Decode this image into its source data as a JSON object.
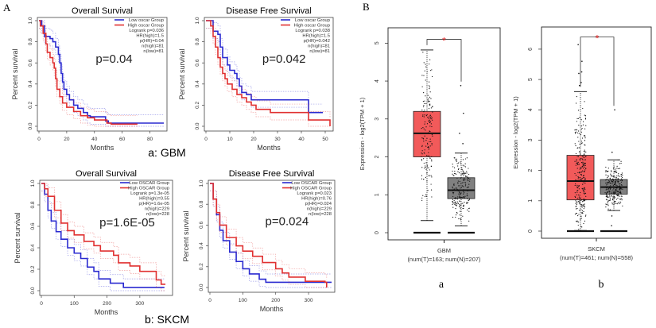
{
  "panel_labels": {
    "A": "A",
    "B": "B",
    "gbm": "a: GBM",
    "skcm": "b:  SKCM",
    "box_a": "a",
    "box_b": "b"
  },
  "colors": {
    "low": "#2a2ad0",
    "high": "#e03030",
    "tumor_box": "#f25a5a",
    "normal_box": "#808080",
    "star": "#e02020"
  },
  "chart_data": [
    {
      "type": "line",
      "title": "Overall Survival",
      "xlabel": "Months",
      "ylabel": "Percent survival",
      "xlim": [
        0,
        90
      ],
      "xticks": [
        0,
        20,
        40,
        60,
        80
      ],
      "ylim": [
        0,
        1
      ],
      "yticks": [
        "0.0",
        "0.2",
        "0.4",
        "0.6",
        "0.8",
        "1.0"
      ],
      "annotation": "p=0.04",
      "legend_placement": "top-right",
      "legend": [
        "Low oscar Group",
        "High oscar Group",
        "Logrank p=0.036",
        "HR(high)=1.5",
        "p(HR)=0.04",
        "n(high)=81",
        "n(low)=81"
      ],
      "series": [
        {
          "name": "Low oscar Group",
          "color": "low",
          "points": [
            [
              0,
              1
            ],
            [
              2,
              0.95
            ],
            [
              4,
              0.85
            ],
            [
              8,
              0.83
            ],
            [
              10,
              0.8
            ],
            [
              12,
              0.75
            ],
            [
              14,
              0.68
            ],
            [
              15,
              0.6
            ],
            [
              16,
              0.5
            ],
            [
              17,
              0.42
            ],
            [
              18,
              0.35
            ],
            [
              20,
              0.3
            ],
            [
              22,
              0.25
            ],
            [
              25,
              0.2
            ],
            [
              28,
              0.17
            ],
            [
              32,
              0.13
            ],
            [
              35,
              0.1
            ],
            [
              37,
              0.09
            ],
            [
              48,
              0.05
            ],
            [
              50,
              0.03
            ],
            [
              90,
              0.03
            ]
          ]
        },
        {
          "name": "High oscar Group",
          "color": "high",
          "points": [
            [
              0,
              1
            ],
            [
              1,
              0.95
            ],
            [
              3,
              0.88
            ],
            [
              5,
              0.78
            ],
            [
              6,
              0.7
            ],
            [
              8,
              0.65
            ],
            [
              10,
              0.6
            ],
            [
              11,
              0.55
            ],
            [
              12,
              0.45
            ],
            [
              13,
              0.35
            ],
            [
              15,
              0.28
            ],
            [
              17,
              0.22
            ],
            [
              20,
              0.18
            ],
            [
              25,
              0.14
            ],
            [
              30,
              0.1
            ],
            [
              35,
              0.08
            ],
            [
              40,
              0.06
            ],
            [
              49,
              0.03
            ],
            [
              52,
              0.02
            ],
            [
              71,
              0.02
            ]
          ]
        }
      ]
    },
    {
      "type": "line",
      "title": "Disease Free Survival",
      "xlabel": "Months",
      "ylabel": "Percent survival",
      "xlim": [
        0,
        52
      ],
      "xticks": [
        0,
        10,
        20,
        30,
        40,
        50
      ],
      "ylim": [
        0,
        1
      ],
      "yticks": [
        "0.0",
        "0.2",
        "0.4",
        "0.6",
        "0.8",
        "1.0"
      ],
      "annotation": "p=0.042",
      "legend_placement": "top-right",
      "legend": [
        "Low oscar Group",
        "High oscar Group",
        "Logrank p=0.038",
        "HR(high)=1.5",
        "p(HR)=0.042",
        "n(high)=81",
        "n(low)=81"
      ],
      "series": [
        {
          "name": "Low oscar Group",
          "color": "low",
          "points": [
            [
              0,
              1
            ],
            [
              3,
              0.9
            ],
            [
              5,
              0.87
            ],
            [
              6,
              0.75
            ],
            [
              7,
              0.65
            ],
            [
              9,
              0.58
            ],
            [
              10,
              0.53
            ],
            [
              12,
              0.5
            ],
            [
              13,
              0.45
            ],
            [
              14,
              0.38
            ],
            [
              15,
              0.32
            ],
            [
              17,
              0.3
            ],
            [
              19,
              0.25
            ],
            [
              43,
              0.13
            ],
            [
              49,
              0.13
            ]
          ]
        },
        {
          "name": "High oscar Group",
          "color": "high",
          "points": [
            [
              0,
              1
            ],
            [
              2,
              0.95
            ],
            [
              3,
              0.85
            ],
            [
              4,
              0.75
            ],
            [
              5,
              0.65
            ],
            [
              6,
              0.56
            ],
            [
              7,
              0.5
            ],
            [
              8,
              0.45
            ],
            [
              9,
              0.4
            ],
            [
              11,
              0.35
            ],
            [
              13,
              0.3
            ],
            [
              15,
              0.27
            ],
            [
              17,
              0.23
            ],
            [
              19,
              0.2
            ],
            [
              21,
              0.16
            ],
            [
              27,
              0.13
            ],
            [
              43,
              0.06
            ],
            [
              52,
              0.0
            ]
          ]
        }
      ]
    },
    {
      "type": "line",
      "title": "Overall Survival",
      "xlabel": "Months",
      "ylabel": "Percent survival",
      "xlim": [
        0,
        390
      ],
      "xticks": [
        0,
        100,
        200,
        300
      ],
      "ylim": [
        0,
        1
      ],
      "yticks": [
        "0.0",
        "0.2",
        "0.4",
        "0.6",
        "0.8",
        "1.0"
      ],
      "annotation": "p=1.6E-05",
      "legend_placement": "top-right",
      "legend": [
        "Low OSCAR Group",
        "High OSCAR Group",
        "Logrank p=1.3e-05",
        "HR(high)=0.55",
        "p(HR)=1.6e-05",
        "n(high)=229",
        "n(low)=228"
      ],
      "series": [
        {
          "name": "Low OSCAR Group",
          "color": "low",
          "points": [
            [
              0,
              1
            ],
            [
              10,
              0.9
            ],
            [
              20,
              0.75
            ],
            [
              30,
              0.65
            ],
            [
              45,
              0.55
            ],
            [
              60,
              0.48
            ],
            [
              80,
              0.4
            ],
            [
              100,
              0.35
            ],
            [
              120,
              0.3
            ],
            [
              140,
              0.22
            ],
            [
              160,
              0.18
            ],
            [
              175,
              0.11
            ],
            [
              210,
              0.07
            ],
            [
              250,
              0.03
            ],
            [
              375,
              0.03
            ]
          ]
        },
        {
          "name": "High OSCAR Group",
          "color": "high",
          "points": [
            [
              0,
              1
            ],
            [
              10,
              0.95
            ],
            [
              20,
              0.88
            ],
            [
              40,
              0.75
            ],
            [
              60,
              0.63
            ],
            [
              80,
              0.56
            ],
            [
              100,
              0.52
            ],
            [
              130,
              0.46
            ],
            [
              160,
              0.42
            ],
            [
              180,
              0.37
            ],
            [
              220,
              0.33
            ],
            [
              235,
              0.26
            ],
            [
              270,
              0.23
            ],
            [
              300,
              0.18
            ],
            [
              350,
              0.1
            ],
            [
              365,
              0.06
            ],
            [
              378,
              0.06
            ]
          ]
        }
      ]
    },
    {
      "type": "line",
      "title": "Disease Free Survival",
      "xlabel": "Months",
      "ylabel": "Percent survival",
      "xlim": [
        0,
        370
      ],
      "xticks": [
        0,
        100,
        200,
        300
      ],
      "ylim": [
        0,
        1
      ],
      "yticks": [
        "0.0",
        "0.2",
        "0.4",
        "0.6",
        "0.8",
        "1.0"
      ],
      "annotation": "p=0.024",
      "legend_placement": "top-right",
      "legend": [
        "Low OSCAR Group",
        "High OSCAR Group",
        "Logrank p=0.023",
        "HR(high)=0.76",
        "p(HR)=0.024",
        "n(high)=229",
        "n(low)=228"
      ],
      "series": [
        {
          "name": "Low OSCAR Group",
          "color": "low",
          "points": [
            [
              0,
              1
            ],
            [
              10,
              0.85
            ],
            [
              20,
              0.7
            ],
            [
              30,
              0.55
            ],
            [
              40,
              0.45
            ],
            [
              60,
              0.34
            ],
            [
              80,
              0.25
            ],
            [
              100,
              0.18
            ],
            [
              120,
              0.13
            ],
            [
              150,
              0.08
            ],
            [
              170,
              0.05
            ],
            [
              370,
              0.05
            ]
          ]
        },
        {
          "name": "High OSCAR Group",
          "color": "high",
          "points": [
            [
              0,
              1
            ],
            [
              10,
              0.85
            ],
            [
              20,
              0.72
            ],
            [
              30,
              0.6
            ],
            [
              50,
              0.48
            ],
            [
              80,
              0.4
            ],
            [
              100,
              0.35
            ],
            [
              130,
              0.3
            ],
            [
              160,
              0.24
            ],
            [
              200,
              0.18
            ],
            [
              220,
              0.14
            ],
            [
              240,
              0.1
            ],
            [
              290,
              0.06
            ],
            [
              350,
              0.05
            ],
            [
              355,
              0.0
            ]
          ]
        }
      ]
    },
    {
      "type": "box",
      "ylabel": "Expression - log2(TPM + 1)",
      "category": "GBM",
      "sublabel": "(num(T)=163; num(N)=207)",
      "ylim": [
        0,
        5.3
      ],
      "yticks": [
        0,
        1,
        2,
        3,
        4,
        5
      ],
      "significance": "*",
      "boxes": [
        {
          "group": "T",
          "n": 163,
          "color": "tumor_box",
          "median": 2.62,
          "q1": 2.0,
          "q3": 3.2,
          "whisker_low": 0.32,
          "whisker_high": 4.82,
          "outliers": []
        },
        {
          "group": "N",
          "n": 207,
          "color": "normal_box",
          "median": 1.12,
          "q1": 0.9,
          "q3": 1.45,
          "whisker_low": 0.18,
          "whisker_high": 2.1,
          "outliers": [
            2.35,
            2.62,
            3.15,
            3.88
          ]
        }
      ]
    },
    {
      "type": "box",
      "ylabel": "Expression - log2(TPM + 1)",
      "category": "SKCM",
      "sublabel": "(num(T)=461; num(N)=558)",
      "ylim": [
        0,
        6.6
      ],
      "yticks": [
        0,
        1,
        2,
        3,
        4,
        5,
        6
      ],
      "significance": "*",
      "boxes": [
        {
          "group": "T",
          "n": 461,
          "color": "tumor_box",
          "median": 1.65,
          "q1": 1.03,
          "q3": 2.5,
          "whisker_low": 0.02,
          "whisker_high": 4.6,
          "outliers": [
            4.8,
            4.9,
            5.2,
            5.25,
            5.6,
            6.15
          ]
        },
        {
          "group": "N",
          "n": 558,
          "color": "normal_box",
          "median": 1.45,
          "q1": 1.22,
          "q3": 1.7,
          "whisker_low": 0.68,
          "whisker_high": 2.35,
          "outliers": [
            2.6,
            4.0,
            0.5,
            0.18
          ]
        }
      ]
    }
  ]
}
